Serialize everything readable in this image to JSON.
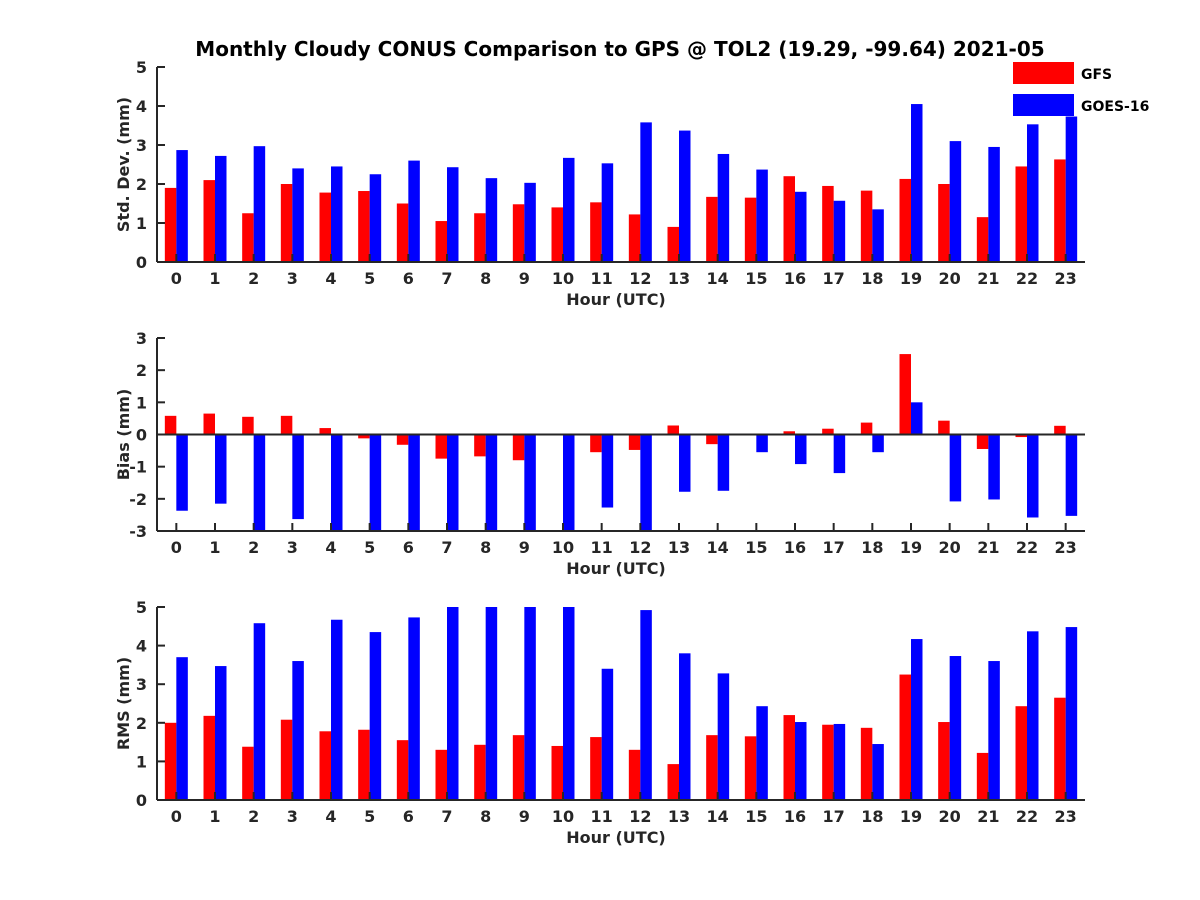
{
  "title": "Monthly Cloudy CONUS Comparison to GPS @ TOL2 (19.29, -99.64) 2021-05",
  "legend": {
    "position": "top-right",
    "items": [
      {
        "name": "GFS",
        "color": "#ff0000"
      },
      {
        "name": "GOES-16",
        "color": "#0000ff"
      }
    ]
  },
  "chart_data": [
    {
      "type": "bar",
      "xlabel": "Hour (UTC)",
      "ylabel": "Std. Dev. (mm)",
      "ylim": [
        0,
        5
      ],
      "yticks": [
        0,
        1,
        2,
        3,
        4,
        5
      ],
      "categories": [
        "0",
        "1",
        "2",
        "3",
        "4",
        "5",
        "6",
        "7",
        "8",
        "9",
        "10",
        "11",
        "12",
        "13",
        "14",
        "15",
        "16",
        "17",
        "18",
        "19",
        "20",
        "21",
        "22",
        "23"
      ],
      "series": [
        {
          "name": "GFS",
          "color": "#ff0000",
          "values": [
            1.9,
            2.1,
            1.25,
            2.0,
            1.78,
            1.82,
            1.5,
            1.05,
            1.25,
            1.48,
            1.4,
            1.53,
            1.22,
            0.9,
            1.67,
            1.65,
            2.2,
            1.95,
            1.83,
            2.13,
            2.0,
            1.15,
            2.45,
            2.63
          ]
        },
        {
          "name": "GOES-16",
          "color": "#0000ff",
          "values": [
            2.87,
            2.72,
            2.97,
            2.4,
            2.45,
            2.25,
            2.6,
            2.43,
            2.15,
            2.03,
            2.67,
            2.53,
            3.58,
            3.37,
            2.77,
            2.37,
            1.8,
            1.57,
            1.35,
            4.05,
            3.1,
            2.95,
            3.53,
            3.73
          ]
        }
      ]
    },
    {
      "type": "bar",
      "xlabel": "Hour (UTC)",
      "ylabel": "Bias (mm)",
      "ylim": [
        -3,
        3
      ],
      "yticks": [
        -3,
        -2,
        -1,
        0,
        1,
        2,
        3
      ],
      "categories": [
        "0",
        "1",
        "2",
        "3",
        "4",
        "5",
        "6",
        "7",
        "8",
        "9",
        "10",
        "11",
        "12",
        "13",
        "14",
        "15",
        "16",
        "17",
        "18",
        "19",
        "20",
        "21",
        "22",
        "23"
      ],
      "series": [
        {
          "name": "GFS",
          "color": "#ff0000",
          "values": [
            0.58,
            0.65,
            0.55,
            0.58,
            0.2,
            -0.12,
            -0.32,
            -0.75,
            -0.68,
            -0.8,
            0.0,
            -0.55,
            -0.48,
            0.28,
            -0.3,
            0.0,
            0.1,
            0.18,
            0.37,
            2.5,
            0.43,
            -0.45,
            -0.08,
            0.27
          ]
        },
        {
          "name": "GOES-16",
          "color": "#0000ff",
          "values": [
            -2.37,
            -2.15,
            -3.0,
            -2.63,
            -3.0,
            -3.0,
            -3.0,
            -3.0,
            -3.0,
            -3.0,
            -3.0,
            -2.27,
            -3.0,
            -1.78,
            -1.75,
            -0.55,
            -0.92,
            -1.2,
            -0.55,
            1.0,
            -2.08,
            -2.02,
            -2.58,
            -2.53
          ]
        }
      ]
    },
    {
      "type": "bar",
      "xlabel": "Hour (UTC)",
      "ylabel": "RMS (mm)",
      "ylim": [
        0,
        5
      ],
      "yticks": [
        0,
        1,
        2,
        3,
        4,
        5
      ],
      "categories": [
        "0",
        "1",
        "2",
        "3",
        "4",
        "5",
        "6",
        "7",
        "8",
        "9",
        "10",
        "11",
        "12",
        "13",
        "14",
        "15",
        "16",
        "17",
        "18",
        "19",
        "20",
        "21",
        "22",
        "23"
      ],
      "series": [
        {
          "name": "GFS",
          "color": "#ff0000",
          "values": [
            2.0,
            2.18,
            1.38,
            2.08,
            1.78,
            1.82,
            1.55,
            1.3,
            1.43,
            1.68,
            1.4,
            1.63,
            1.3,
            0.93,
            1.68,
            1.65,
            2.2,
            1.95,
            1.87,
            3.25,
            2.02,
            1.22,
            2.43,
            2.65
          ]
        },
        {
          "name": "GOES-16",
          "color": "#0000ff",
          "values": [
            3.7,
            3.47,
            4.58,
            3.6,
            4.67,
            4.35,
            4.73,
            5.0,
            5.0,
            5.0,
            5.0,
            3.4,
            4.92,
            3.8,
            3.28,
            2.43,
            2.02,
            1.97,
            1.45,
            4.17,
            3.73,
            3.6,
            4.37,
            4.48
          ]
        }
      ]
    }
  ]
}
